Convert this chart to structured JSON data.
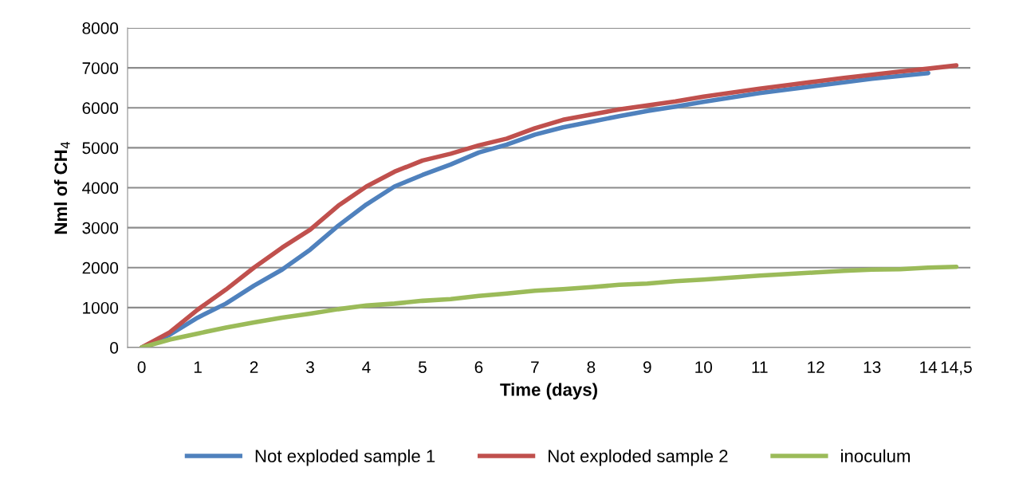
{
  "chart_data": {
    "type": "line",
    "xlabel": "Time (days)",
    "ylabel": "Nml of CH$_{4}$",
    "categories": [
      "0",
      null,
      "1",
      null,
      "2",
      null,
      "3",
      null,
      "4",
      null,
      "5",
      null,
      "6",
      null,
      "7",
      null,
      "8",
      null,
      "9",
      null,
      "10",
      null,
      "11",
      null,
      "12",
      null,
      "13",
      null,
      "14",
      "14,5"
    ],
    "series": [
      {
        "name": "Not exploded sample 1",
        "color": "#4f81bd",
        "values": [
          0,
          320,
          750,
          1100,
          1550,
          1950,
          2450,
          3050,
          3580,
          4030,
          4320,
          4580,
          4880,
          5080,
          5330,
          5510,
          5650,
          5790,
          5920,
          6030,
          6150,
          6260,
          6370,
          6460,
          6550,
          6640,
          6730,
          6800,
          6870,
          null
        ]
      },
      {
        "name": "Not exploded sample 2",
        "color": "#c0504d",
        "values": [
          0,
          380,
          950,
          1450,
          2000,
          2500,
          2950,
          3550,
          4030,
          4400,
          4680,
          4850,
          5060,
          5230,
          5490,
          5700,
          5830,
          5960,
          6060,
          6160,
          6280,
          6380,
          6480,
          6570,
          6660,
          6750,
          6830,
          6910,
          6980,
          7060
        ]
      },
      {
        "name": "inoculum",
        "color": "#9bbb59",
        "values": [
          0,
          200,
          350,
          500,
          630,
          750,
          850,
          960,
          1050,
          1100,
          1170,
          1210,
          1290,
          1350,
          1420,
          1460,
          1510,
          1570,
          1600,
          1660,
          1700,
          1750,
          1800,
          1840,
          1880,
          1920,
          1950,
          1960,
          2000,
          2020
        ]
      }
    ],
    "ylim": [
      0,
      8000
    ],
    "yticks": [
      0,
      1000,
      2000,
      3000,
      4000,
      5000,
      6000,
      7000,
      8000
    ],
    "grid": "y",
    "legend": "bottom",
    "marker": "none",
    "line_style": "solid"
  }
}
